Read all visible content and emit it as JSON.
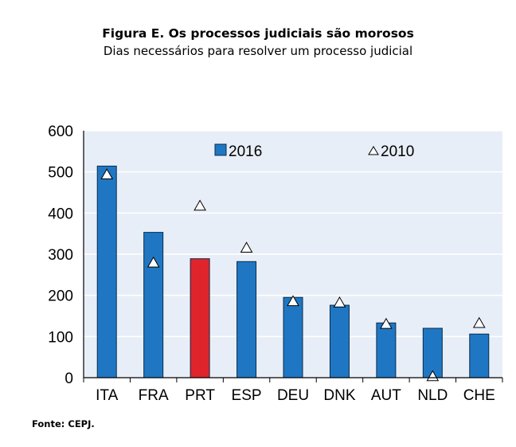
{
  "figure": {
    "title": "Figura E. Os processos judiciais são morosos",
    "subtitle": "Dias necessários para resolver um processo judicial",
    "source": "Fonte: CEPJ."
  },
  "chart_data": {
    "type": "bar",
    "categories": [
      "ITA",
      "FRA",
      "PRT",
      "ESP",
      "DEU",
      "DNK",
      "AUT",
      "NLD",
      "CHE"
    ],
    "series": [
      {
        "name": "2016",
        "kind": "bar",
        "values": [
          514,
          353,
          289,
          282,
          195,
          176,
          133,
          120,
          106
        ]
      },
      {
        "name": "2010",
        "kind": "marker-triangle",
        "values": [
          493,
          279,
          417,
          315,
          185,
          182,
          130,
          3,
          132
        ]
      }
    ],
    "ylim": [
      0,
      600
    ],
    "yticks": [
      0,
      100,
      200,
      300,
      400,
      500,
      600
    ],
    "grid": true,
    "legend": {
      "position": "top",
      "labels": [
        "2016",
        "2010"
      ]
    },
    "colors": {
      "bar": "#1f77c4",
      "highlight": "#e0242c",
      "highlight_category": "PRT",
      "plot_bg": "#e8eef7",
      "grid": "#ffffff",
      "marker_fill": "#ffffff",
      "marker_stroke": "#000000"
    }
  }
}
